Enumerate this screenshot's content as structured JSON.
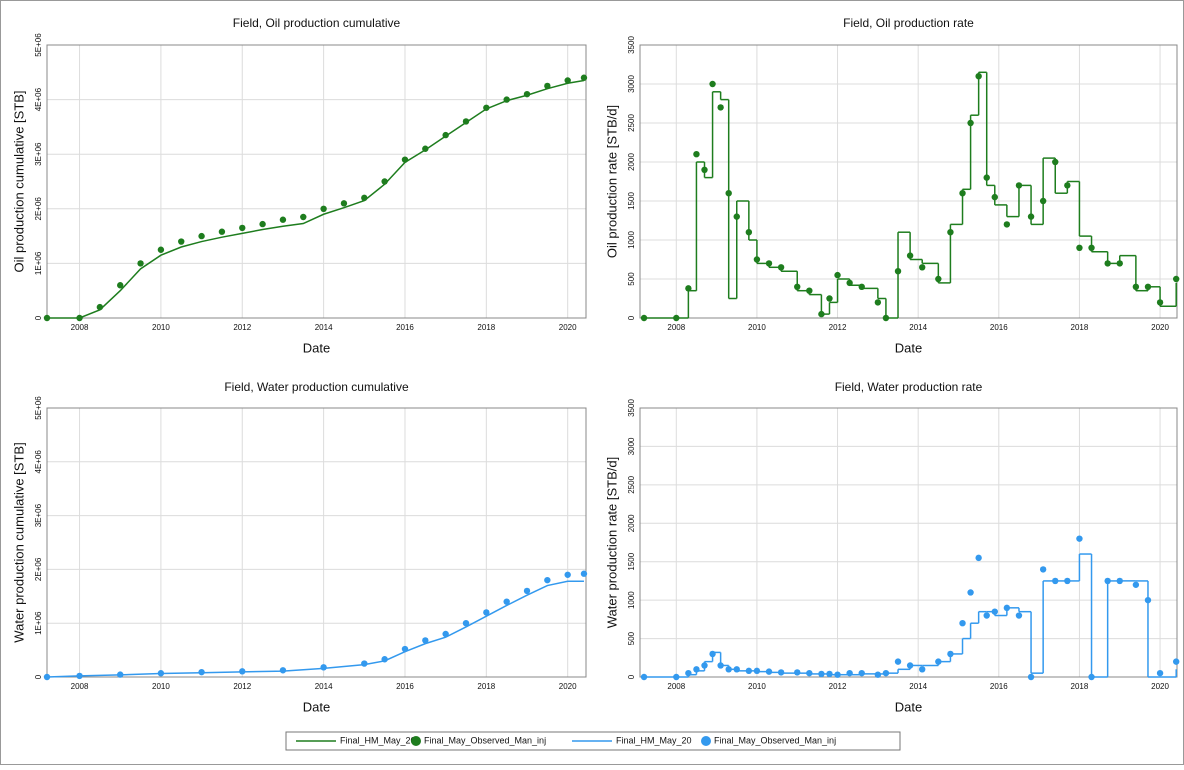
{
  "chart_data": [
    {
      "type": "line",
      "title": "Field, Oil production cumulative",
      "xlabel": "Date",
      "ylabel": "Oil production cumulative [STB]",
      "x": [
        2007.2,
        2008.0,
        2008.5,
        2009.0,
        2009.5,
        2010.0,
        2010.5,
        2011.0,
        2011.5,
        2012.0,
        2012.5,
        2013.0,
        2013.5,
        2014.0,
        2014.5,
        2015.0,
        2015.5,
        2016.0,
        2016.5,
        2017.0,
        2017.5,
        2018.0,
        2018.5,
        2019.0,
        2019.5,
        2020.0,
        2020.4
      ],
      "step": false,
      "series": [
        {
          "name": "Final_HM_May_20",
          "style": "line",
          "color": "#1e7d1e",
          "values": [
            0,
            0,
            150000,
            500000,
            900000,
            1150000,
            1300000,
            1400000,
            1480000,
            1550000,
            1620000,
            1680000,
            1730000,
            1900000,
            2020000,
            2150000,
            2450000,
            2850000,
            3080000,
            3330000,
            3580000,
            3830000,
            3980000,
            4080000,
            4200000,
            4300000,
            4350000
          ]
        },
        {
          "name": "Final_May_Observed_Man_inj",
          "style": "scatter",
          "color": "#1e7d1e",
          "values": [
            0,
            0,
            200000,
            600000,
            1000000,
            1250000,
            1400000,
            1500000,
            1580000,
            1650000,
            1720000,
            1800000,
            1850000,
            2000000,
            2100000,
            2200000,
            2500000,
            2900000,
            3100000,
            3350000,
            3600000,
            3850000,
            4000000,
            4100000,
            4250000,
            4350000,
            4400000
          ]
        }
      ],
      "xlim": [
        2007.2,
        2020.45
      ],
      "xticks": [
        2008,
        2010,
        2012,
        2014,
        2016,
        2018,
        2020
      ],
      "ylim": [
        0,
        5000000
      ],
      "yticks": [
        0,
        {
          "value": 1000000,
          "label": "1E+06"
        },
        {
          "value": 2000000,
          "label": "2E+06"
        },
        {
          "value": 3000000,
          "label": "3E+06"
        },
        {
          "value": 4000000,
          "label": "4E+06"
        },
        {
          "value": 5000000,
          "label": "5E+06"
        }
      ],
      "grid": true
    },
    {
      "type": "line",
      "title": "Field, Oil production rate",
      "xlabel": "Date",
      "ylabel": "Oil production rate [STB/d]",
      "x": [
        2007.2,
        2008.0,
        2008.3,
        2008.5,
        2008.7,
        2008.9,
        2009.1,
        2009.3,
        2009.5,
        2009.8,
        2010.0,
        2010.3,
        2010.6,
        2011.0,
        2011.3,
        2011.6,
        2011.8,
        2012.0,
        2012.3,
        2012.6,
        2013.0,
        2013.2,
        2013.5,
        2013.8,
        2014.1,
        2014.5,
        2014.8,
        2015.1,
        2015.3,
        2015.5,
        2015.7,
        2015.9,
        2016.2,
        2016.5,
        2016.8,
        2017.1,
        2017.4,
        2017.7,
        2018.0,
        2018.3,
        2018.7,
        2019.0,
        2019.4,
        2019.7,
        2020.0,
        2020.4
      ],
      "step": true,
      "series": [
        {
          "style": "line",
          "color": "#1e7d1e",
          "values": [
            0,
            0,
            350,
            2000,
            1800,
            2900,
            2800,
            250,
            1500,
            1000,
            700,
            650,
            600,
            350,
            300,
            50,
            200,
            500,
            420,
            380,
            250,
            0,
            1100,
            750,
            700,
            450,
            1200,
            1650,
            2600,
            3150,
            1700,
            1450,
            1300,
            1700,
            1200,
            2050,
            1600,
            1750,
            1050,
            850,
            700,
            800,
            350,
            400,
            150,
            450
          ]
        },
        {
          "style": "scatter",
          "color": "#1e7d1e",
          "values": [
            0,
            0,
            380,
            2100,
            1900,
            3000,
            2700,
            1600,
            1300,
            1100,
            750,
            700,
            650,
            400,
            350,
            50,
            250,
            550,
            450,
            400,
            200,
            0,
            600,
            800,
            650,
            500,
            1100,
            1600,
            2500,
            3100,
            1800,
            1550,
            1200,
            1700,
            1300,
            1500,
            2000,
            1700,
            900,
            900,
            700,
            700,
            400,
            400,
            200,
            500
          ]
        }
      ],
      "xlim": [
        2007.1,
        2020.42
      ],
      "xticks": [
        2008,
        2010,
        2012,
        2014,
        2016,
        2018,
        2020
      ],
      "ylim": [
        0,
        3500
      ],
      "yticks": [
        0,
        500,
        1000,
        1500,
        2000,
        2500,
        3000,
        3500
      ],
      "grid": true
    },
    {
      "type": "line",
      "title": "Field, Water production cumulative",
      "xlabel": "Date",
      "ylabel": "Water production cumulative [STB]",
      "x": [
        2007.2,
        2008.0,
        2009.0,
        2010.0,
        2011.0,
        2012.0,
        2013.0,
        2014.0,
        2015.0,
        2015.5,
        2016.0,
        2016.5,
        2017.0,
        2017.5,
        2018.0,
        2018.5,
        2019.0,
        2019.5,
        2020.0,
        2020.4
      ],
      "step": false,
      "series": [
        {
          "name": "Final_HM_May_20",
          "style": "line",
          "color": "#3399ee",
          "values": [
            0,
            20000,
            40000,
            65000,
            80000,
            95000,
            110000,
            160000,
            230000,
            300000,
            470000,
            620000,
            740000,
            930000,
            1130000,
            1330000,
            1520000,
            1700000,
            1780000,
            1780000
          ]
        },
        {
          "name": "Final_May_Observed_Man_inj",
          "style": "scatter",
          "color": "#3399ee",
          "values": [
            0,
            20000,
            45000,
            70000,
            90000,
            105000,
            125000,
            180000,
            250000,
            330000,
            520000,
            680000,
            800000,
            1000000,
            1200000,
            1400000,
            1600000,
            1800000,
            1900000,
            1920000
          ]
        }
      ],
      "xlim": [
        2007.2,
        2020.45
      ],
      "xticks": [
        2008,
        2010,
        2012,
        2014,
        2016,
        2018,
        2020
      ],
      "ylim": [
        0,
        5000000
      ],
      "yticks": [
        0,
        {
          "value": 1000000,
          "label": "1E+06"
        },
        {
          "value": 2000000,
          "label": "2E+06"
        },
        {
          "value": 3000000,
          "label": "3E+06"
        },
        {
          "value": 4000000,
          "label": "4E+06"
        },
        {
          "value": 5000000,
          "label": "5E+06"
        }
      ],
      "grid": true
    },
    {
      "type": "line",
      "title": "Field, Water production rate",
      "xlabel": "Date",
      "ylabel": "Water production rate [STB/d]",
      "x": [
        2007.2,
        2008.0,
        2008.3,
        2008.5,
        2008.7,
        2008.9,
        2009.1,
        2009.3,
        2009.5,
        2009.8,
        2010.0,
        2010.3,
        2010.6,
        2011.0,
        2011.3,
        2011.6,
        2011.8,
        2012.0,
        2012.3,
        2012.6,
        2013.0,
        2013.2,
        2013.5,
        2013.8,
        2014.1,
        2014.5,
        2014.8,
        2015.1,
        2015.3,
        2015.5,
        2015.7,
        2015.9,
        2016.2,
        2016.5,
        2016.8,
        2017.1,
        2017.4,
        2017.7,
        2018.0,
        2018.3,
        2018.7,
        2019.0,
        2019.4,
        2019.7,
        2020.0,
        2020.4
      ],
      "step": true,
      "series": [
        {
          "style": "line",
          "color": "#3399ee",
          "values": [
            0,
            0,
            30,
            80,
            200,
            320,
            150,
            100,
            80,
            80,
            70,
            60,
            50,
            50,
            40,
            40,
            30,
            30,
            30,
            40,
            40,
            50,
            100,
            150,
            150,
            200,
            300,
            500,
            700,
            850,
            850,
            800,
            900,
            850,
            50,
            1250,
            1250,
            1250,
            1600,
            0,
            1250,
            1250,
            1250,
            0,
            0,
            100
          ]
        },
        {
          "style": "scatter",
          "color": "#3399ee",
          "values": [
            0,
            0,
            50,
            100,
            150,
            300,
            150,
            100,
            100,
            80,
            80,
            70,
            60,
            60,
            50,
            40,
            40,
            30,
            50,
            50,
            30,
            50,
            200,
            150,
            100,
            200,
            300,
            700,
            1100,
            1550,
            800,
            850,
            900,
            800,
            0,
            1400,
            1250,
            1250,
            1800,
            0,
            1250,
            1250,
            1200,
            1000,
            50,
            200
          ]
        }
      ],
      "xlim": [
        2007.1,
        2020.42
      ],
      "xticks": [
        2008,
        2010,
        2012,
        2014,
        2016,
        2018,
        2020
      ],
      "ylim": [
        0,
        3500
      ],
      "yticks": [
        0,
        500,
        1000,
        1500,
        2000,
        2500,
        3000,
        3500
      ],
      "grid": true
    }
  ]
}
